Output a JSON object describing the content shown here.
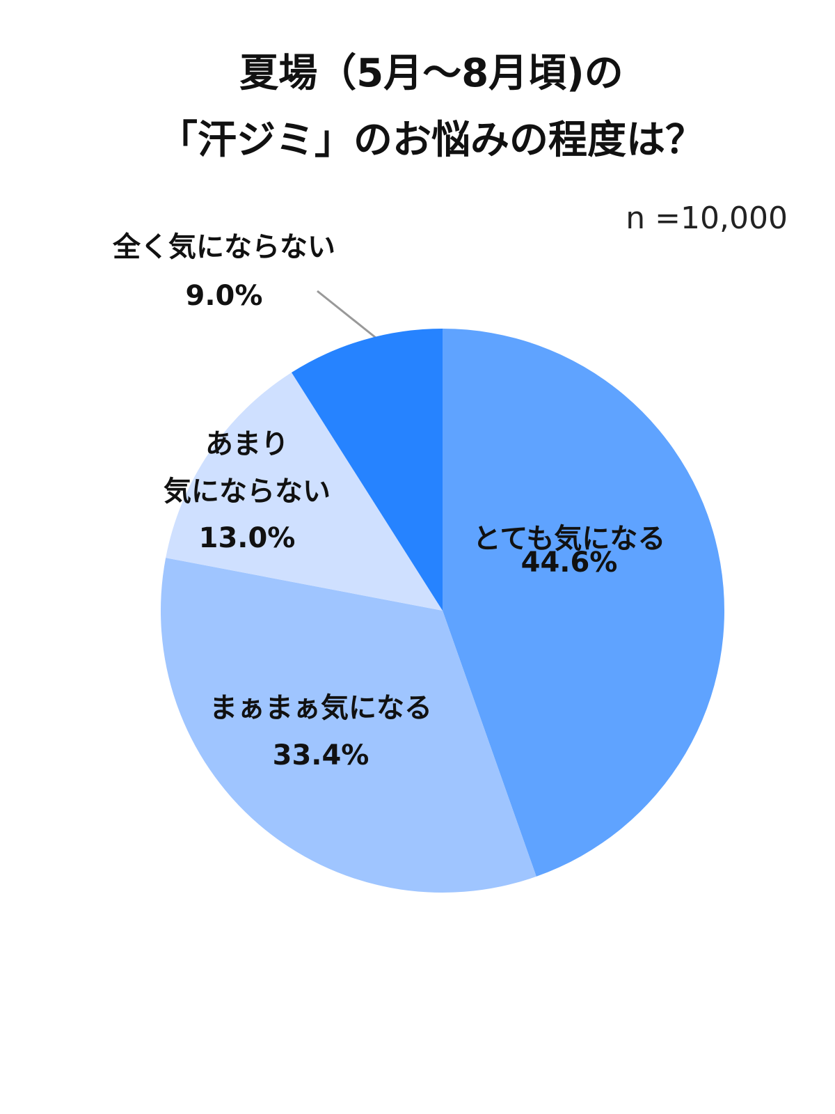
{
  "chart_data": {
    "type": "pie",
    "title": "夏場（5月〜8月頃)の\n「汗ジミ」のお悩みの程度は？",
    "note": "n =10,000",
    "categories": [
      "とても気になる",
      "まぁまぁ気になる",
      "あまり\n気にならない",
      "全く気にならない"
    ],
    "values": [
      44.6,
      33.4,
      13.0,
      9.0
    ],
    "value_labels": [
      "44.6%",
      "33.4%",
      "13.0%",
      "9.0%"
    ],
    "colors": [
      "#5fa3ff",
      "#9fc5ff",
      "#cfe0ff",
      "#2683ff"
    ]
  }
}
